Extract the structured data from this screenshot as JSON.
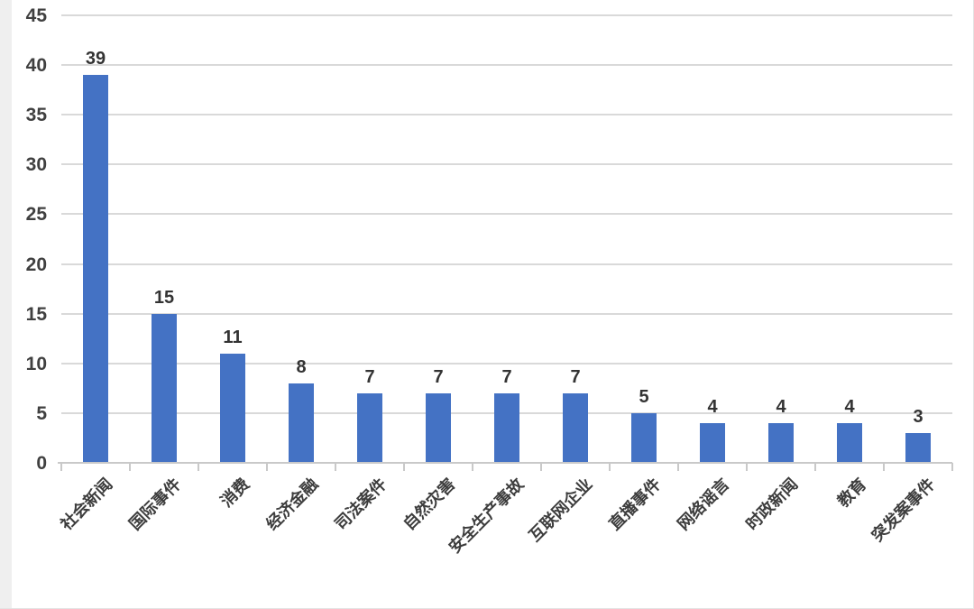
{
  "chart_data": {
    "type": "bar",
    "title": "",
    "categories": [
      "社会新闻",
      "国际事件",
      "消费",
      "经济金融",
      "司法案件",
      "自然灾害",
      "安全生产事故",
      "互联网企业",
      "直播事件",
      "网络谣言",
      "时政新闻",
      "教育",
      "突发案事件"
    ],
    "values": [
      39,
      15,
      11,
      8,
      7,
      7,
      7,
      7,
      5,
      4,
      4,
      4,
      3
    ],
    "y_ticks": [
      0,
      5,
      10,
      15,
      20,
      25,
      30,
      35,
      40,
      45
    ],
    "ylim": [
      0,
      45
    ],
    "xlabel": "",
    "ylabel": "",
    "legend_position": "none",
    "grid": true,
    "data_labels": true,
    "colors": {
      "bar": "#4472C4",
      "gridline": "#d9d9d9",
      "axis_line": "#c9c9c9",
      "axis_text": "#404040",
      "data_label_text": "#333333",
      "category_text": "#3d3d3d",
      "background": "#ffffff"
    }
  }
}
